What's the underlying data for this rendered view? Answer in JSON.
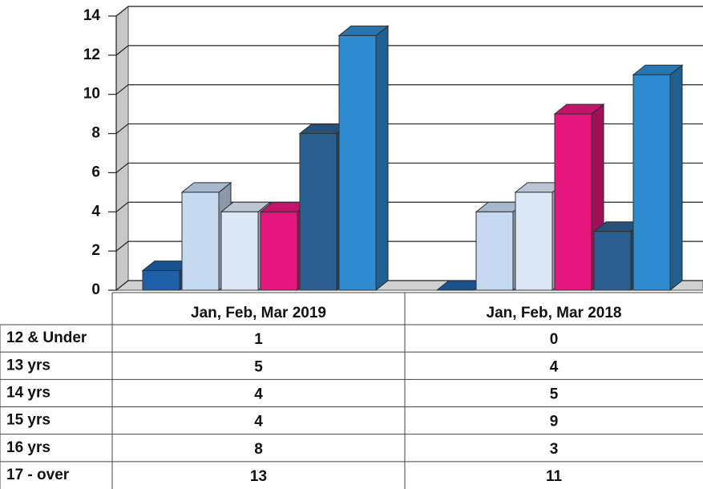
{
  "chart_data": {
    "type": "bar3d",
    "categories": [
      "Jan, Feb, Mar 2019",
      "Jan, Feb, Mar 2018"
    ],
    "series": [
      {
        "name": "12 & Under",
        "color": "#1f5fa8",
        "values": [
          1,
          0
        ]
      },
      {
        "name": "13 yrs",
        "color": "#c5d9f1",
        "values": [
          5,
          4
        ]
      },
      {
        "name": "14 yrs",
        "color": "#dde8f6",
        "values": [
          4,
          5
        ]
      },
      {
        "name": "15 yrs",
        "color": "#e5177e",
        "values": [
          4,
          9
        ]
      },
      {
        "name": "16 yrs",
        "color": "#2b5f8f",
        "values": [
          8,
          3
        ]
      },
      {
        "name": "17 - over",
        "color": "#2e8bd0",
        "values": [
          13,
          11
        ]
      }
    ],
    "ylim": [
      0,
      14
    ],
    "yticks": [
      0,
      2,
      4,
      6,
      8,
      10,
      12,
      14
    ],
    "grid": true
  }
}
